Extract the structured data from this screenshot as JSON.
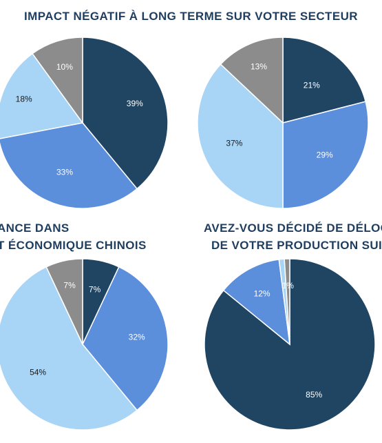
{
  "colors": {
    "dark_navy": "#1f4563",
    "mid_blue": "#5b8edb",
    "light_blue": "#a8d4f5",
    "gray": "#8c8c8c",
    "title": "#1f3d5e"
  },
  "titles": {
    "top": "IMPACT NÉGATIF À LONG TERME SUR VOTRE SECTEUR",
    "bottom_left_1": "ANCE DANS",
    "bottom_left_2": "T ÉCONOMIQUE CHINOIS",
    "bottom_right_1": "AVEZ-VOUS DÉCIDÉ DE DÉLOCA",
    "bottom_right_2": "DE VOTRE PRODUCTION SUIT"
  },
  "chart_data": [
    {
      "type": "pie",
      "title": "IMPACT NÉGATIF À LONG TERME SUR VOTRE SECTEUR",
      "slices": [
        {
          "value": 39,
          "label": "39%",
          "color": "#1f4563"
        },
        {
          "value": 33,
          "label": "33%",
          "color": "#5b8edb"
        },
        {
          "value": 18,
          "label": "18%",
          "color": "#a8d4f5"
        },
        {
          "value": 10,
          "label": "10%",
          "color": "#8c8c8c"
        }
      ]
    },
    {
      "type": "pie",
      "title": "IMPACT NÉGATIF À LONG TERME SUR VOTRE SECTEUR",
      "slices": [
        {
          "value": 21,
          "label": "21%",
          "color": "#1f4563"
        },
        {
          "value": 29,
          "label": "29%",
          "color": "#5b8edb"
        },
        {
          "value": 37,
          "label": "37%",
          "color": "#a8d4f5"
        },
        {
          "value": 13,
          "label": "13%",
          "color": "#8c8c8c"
        }
      ]
    },
    {
      "type": "pie",
      "title": "ANCE DANS T ÉCONOMIQUE CHINOIS",
      "slices": [
        {
          "value": 7,
          "label": "7%",
          "color": "#1f4563"
        },
        {
          "value": 32,
          "label": "32%",
          "color": "#5b8edb"
        },
        {
          "value": 54,
          "label": "54%",
          "color": "#a8d4f5"
        },
        {
          "value": 7,
          "label": "7%",
          "color": "#8c8c8c"
        }
      ]
    },
    {
      "type": "pie",
      "title": "AVEZ-VOUS DÉCIDÉ DE DÉLOCA DE VOTRE PRODUCTION SUIT",
      "slices": [
        {
          "value": 85,
          "label": "85%",
          "color": "#1f4563"
        },
        {
          "value": 12,
          "label": "12%",
          "color": "#5b8edb"
        },
        {
          "value": 1,
          "label": "",
          "color": "#a8d4f5"
        },
        {
          "value": 1,
          "label": "1%",
          "color": "#8c8c8c"
        }
      ]
    }
  ]
}
